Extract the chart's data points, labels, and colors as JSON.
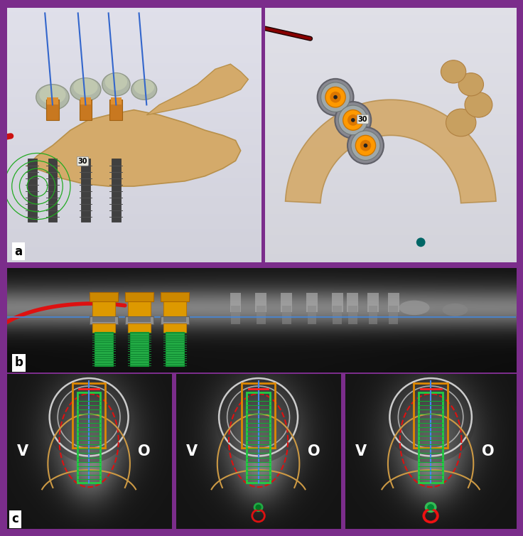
{
  "border_color": "#7B2D8B",
  "fig_width": 7.36,
  "fig_height": 7.54,
  "panel_a_label": "a",
  "panel_b_label": "b",
  "panel_c_label": "c",
  "label_fontsize": 12,
  "label_fontweight": "bold",
  "v_label": "V",
  "o_label": "O",
  "vo_fontsize": 15,
  "vo_fontweight": "bold"
}
